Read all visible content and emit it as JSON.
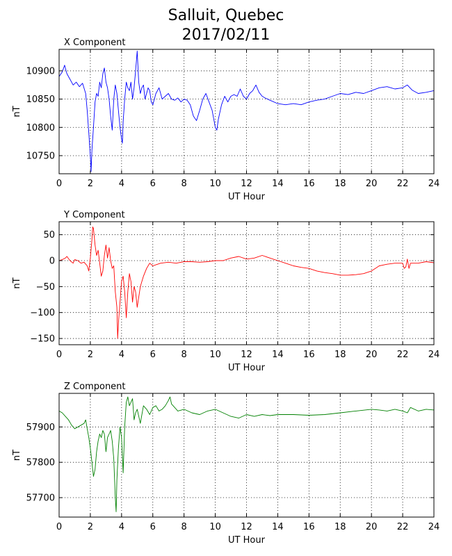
{
  "figure": {
    "title_line1": "Salluit, Quebec",
    "title_line2": "2017/02/11"
  },
  "chart_data": [
    {
      "type": "line",
      "title": "X Component",
      "xlabel": "UT Hour",
      "ylabel": "nT",
      "xlim": [
        0,
        24
      ],
      "ylim": [
        10718,
        10938
      ],
      "xticks": [
        0,
        2,
        4,
        6,
        8,
        10,
        12,
        14,
        16,
        18,
        20,
        22,
        24
      ],
      "yticks": [
        10750,
        10800,
        10850,
        10900
      ],
      "grid": true,
      "color": "#0000ff",
      "series": [
        {
          "x": [
            0,
            0.2,
            0.35,
            0.5,
            0.7,
            0.9,
            1.1,
            1.3,
            1.5,
            1.7,
            1.8,
            1.9,
            2.0,
            2.05,
            2.1,
            2.2,
            2.3,
            2.4,
            2.5,
            2.6,
            2.7,
            2.8,
            2.9,
            3.0,
            3.1,
            3.2,
            3.3,
            3.4,
            3.5,
            3.6,
            3.7,
            3.8,
            3.9,
            4.0,
            4.05,
            4.1,
            4.2,
            4.3,
            4.4,
            4.5,
            4.6,
            4.7,
            4.8,
            4.9,
            5.0,
            5.1,
            5.2,
            5.3,
            5.4,
            5.5,
            5.6,
            5.7,
            5.8,
            5.9,
            6.0,
            6.2,
            6.4,
            6.6,
            6.8,
            7.0,
            7.2,
            7.4,
            7.6,
            7.8,
            8.0,
            8.2,
            8.4,
            8.6,
            8.8,
            9.0,
            9.2,
            9.4,
            9.6,
            9.8,
            10.0,
            10.1,
            10.2,
            10.4,
            10.6,
            10.8,
            11.0,
            11.2,
            11.4,
            11.6,
            11.8,
            12.0,
            12.2,
            12.4,
            12.6,
            12.8,
            13.0,
            13.2,
            13.5,
            14.0,
            14.5,
            15.0,
            15.5,
            16.0,
            16.5,
            17.0,
            17.5,
            18.0,
            18.5,
            19.0,
            19.5,
            20.0,
            20.5,
            21.0,
            21.5,
            22.0,
            22.3,
            22.6,
            23.0,
            23.5,
            24.0
          ],
          "y": [
            10890,
            10898,
            10910,
            10895,
            10885,
            10875,
            10880,
            10872,
            10878,
            10860,
            10830,
            10790,
            10750,
            10722,
            10760,
            10800,
            10845,
            10860,
            10855,
            10880,
            10870,
            10895,
            10905,
            10880,
            10870,
            10850,
            10820,
            10795,
            10850,
            10875,
            10860,
            10830,
            10800,
            10780,
            10772,
            10810,
            10850,
            10880,
            10870,
            10865,
            10880,
            10850,
            10870,
            10900,
            10935,
            10880,
            10860,
            10870,
            10875,
            10850,
            10860,
            10870,
            10865,
            10845,
            10840,
            10860,
            10870,
            10850,
            10855,
            10860,
            10850,
            10848,
            10852,
            10845,
            10850,
            10848,
            10840,
            10820,
            10812,
            10830,
            10850,
            10860,
            10845,
            10830,
            10800,
            10795,
            10815,
            10840,
            10855,
            10845,
            10855,
            10858,
            10855,
            10868,
            10855,
            10850,
            10860,
            10865,
            10875,
            10862,
            10855,
            10852,
            10848,
            10842,
            10840,
            10842,
            10840,
            10845,
            10848,
            10850,
            10855,
            10860,
            10858,
            10862,
            10860,
            10865,
            10870,
            10872,
            10868,
            10870,
            10875,
            10866,
            10860,
            10862,
            10865
          ]
        }
      ]
    },
    {
      "type": "line",
      "title": "Y Component",
      "xlabel": "UT Hour",
      "ylabel": "nT",
      "xlim": [
        0,
        24
      ],
      "ylim": [
        -162,
        75
      ],
      "xticks": [
        0,
        2,
        4,
        6,
        8,
        10,
        12,
        14,
        16,
        18,
        20,
        22,
        24
      ],
      "yticks": [
        -150,
        -100,
        -50,
        0,
        50
      ],
      "grid": true,
      "color": "#ff0000",
      "series": [
        {
          "x": [
            0,
            0.2,
            0.4,
            0.5,
            0.7,
            0.9,
            1.0,
            1.2,
            1.4,
            1.6,
            1.8,
            1.9,
            2.0,
            2.1,
            2.15,
            2.2,
            2.3,
            2.4,
            2.5,
            2.6,
            2.7,
            2.8,
            2.9,
            3.0,
            3.1,
            3.2,
            3.3,
            3.4,
            3.5,
            3.6,
            3.7,
            3.75,
            3.8,
            3.9,
            4.0,
            4.1,
            4.2,
            4.3,
            4.4,
            4.5,
            4.6,
            4.7,
            4.8,
            4.9,
            5.0,
            5.2,
            5.4,
            5.6,
            5.8,
            6.0,
            6.5,
            7.0,
            7.5,
            8.0,
            8.5,
            9.0,
            9.5,
            10.0,
            10.5,
            11.0,
            11.5,
            12.0,
            12.5,
            13.0,
            13.5,
            14.0,
            14.5,
            15.0,
            15.5,
            16.0,
            16.5,
            17.0,
            17.5,
            18.0,
            18.5,
            19.0,
            19.5,
            20.0,
            20.5,
            21.0,
            21.5,
            22.0,
            22.1,
            22.2,
            22.3,
            22.4,
            22.5,
            23.0,
            23.5,
            24.0
          ],
          "y": [
            0,
            2,
            5,
            8,
            0,
            -5,
            2,
            0,
            -5,
            -3,
            -10,
            -20,
            5,
            40,
            65,
            62,
            30,
            10,
            20,
            -5,
            -30,
            -20,
            10,
            30,
            5,
            25,
            0,
            -15,
            -10,
            -60,
            -90,
            -150,
            -120,
            -80,
            -40,
            -30,
            -60,
            -110,
            -60,
            -25,
            -40,
            -80,
            -50,
            -60,
            -90,
            -50,
            -30,
            -15,
            -5,
            -10,
            -5,
            -3,
            -5,
            -2,
            -2,
            -3,
            -2,
            0,
            0,
            5,
            8,
            3,
            5,
            10,
            5,
            0,
            -5,
            -10,
            -13,
            -15,
            -20,
            -23,
            -25,
            -28,
            -28,
            -27,
            -25,
            -20,
            -10,
            -7,
            -5,
            -5,
            -15,
            -12,
            3,
            -15,
            -5,
            -5,
            -2,
            -4
          ]
        }
      ]
    },
    {
      "type": "line",
      "title": "Z Component",
      "xlabel": "UT Hour",
      "ylabel": "nT",
      "xlim": [
        0,
        24
      ],
      "ylim": [
        57645,
        57995
      ],
      "xticks": [
        0,
        2,
        4,
        6,
        8,
        10,
        12,
        14,
        16,
        18,
        20,
        22,
        24
      ],
      "yticks": [
        57700,
        57800,
        57900
      ],
      "grid": true,
      "color": "#008000",
      "series": [
        {
          "x": [
            0,
            0.2,
            0.4,
            0.6,
            0.8,
            1.0,
            1.2,
            1.4,
            1.6,
            1.7,
            1.8,
            1.9,
            2.0,
            2.1,
            2.2,
            2.3,
            2.4,
            2.5,
            2.6,
            2.7,
            2.8,
            2.9,
            3.0,
            3.1,
            3.2,
            3.3,
            3.4,
            3.5,
            3.6,
            3.65,
            3.7,
            3.8,
            3.9,
            4.0,
            4.1,
            4.2,
            4.3,
            4.4,
            4.5,
            4.6,
            4.7,
            4.8,
            4.9,
            5.0,
            5.2,
            5.4,
            5.6,
            5.8,
            6.0,
            6.2,
            6.4,
            6.6,
            6.8,
            7.0,
            7.1,
            7.2,
            7.4,
            7.6,
            8.0,
            8.5,
            9.0,
            9.5,
            10.0,
            10.5,
            11.0,
            11.5,
            12.0,
            12.5,
            13.0,
            13.5,
            14.0,
            15.0,
            16.0,
            17.0,
            18.0,
            19.0,
            20.0,
            20.5,
            21.0,
            21.5,
            22.0,
            22.3,
            22.5,
            23.0,
            23.5,
            24.0
          ],
          "y": [
            57945,
            57940,
            57930,
            57920,
            57905,
            57895,
            57900,
            57905,
            57910,
            57920,
            57895,
            57870,
            57840,
            57800,
            57760,
            57780,
            57830,
            57860,
            57880,
            57870,
            57890,
            57880,
            57830,
            57870,
            57880,
            57890,
            57860,
            57810,
            57700,
            57660,
            57750,
            57840,
            57900,
            57870,
            57770,
            57900,
            57970,
            57985,
            57960,
            57970,
            57980,
            57920,
            57940,
            57950,
            57910,
            57960,
            57950,
            57935,
            57955,
            57960,
            57945,
            57950,
            57960,
            57975,
            57985,
            57965,
            57955,
            57945,
            57950,
            57940,
            57935,
            57945,
            57950,
            57940,
            57930,
            57925,
            57935,
            57930,
            57935,
            57932,
            57935,
            57935,
            57933,
            57935,
            57940,
            57945,
            57950,
            57948,
            57945,
            57950,
            57945,
            57940,
            57955,
            57945,
            57950,
            57948
          ]
        }
      ]
    }
  ]
}
